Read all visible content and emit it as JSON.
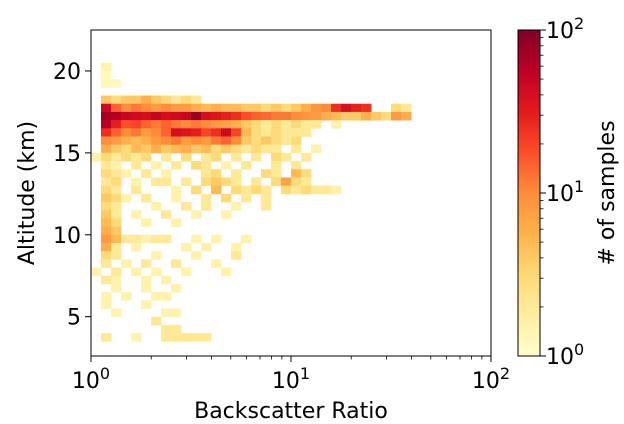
{
  "chart_data": {
    "type": "heatmap",
    "title": "",
    "xlabel": "Backscatter Ratio",
    "ylabel": "Altitude (km)",
    "x_scale": "log",
    "xlim": [
      1,
      100
    ],
    "ylim": [
      2.6,
      22.5
    ],
    "x_ticks": [
      {
        "value": 1,
        "base": "10",
        "exp": "0"
      },
      {
        "value": 10,
        "base": "10",
        "exp": "1"
      },
      {
        "value": 100,
        "base": "10",
        "exp": "2"
      }
    ],
    "y_ticks": [
      5,
      10,
      15,
      20
    ],
    "grid": false,
    "colorbar": {
      "label": "# of samples",
      "scale": "log",
      "range": [
        1,
        100
      ],
      "colormap": "YlOrRd",
      "ticks": [
        {
          "value": 1,
          "base": "10",
          "exp": "0"
        },
        {
          "value": 10,
          "base": "10",
          "exp": "1"
        },
        {
          "value": 100,
          "base": "10",
          "exp": "2"
        }
      ]
    },
    "x_bin_edges_note": "bins uniform in log10(ratio), 0.05 decades wide starting at 1",
    "y_bin_width_km": 0.5,
    "cells_columns": [
      "log10_ratio_bin_start",
      "altitude_bin_start_km",
      "count"
    ],
    "cells": [
      [
        0.05,
        20.0,
        1.5
      ],
      [
        0.05,
        19.5,
        1.2
      ],
      [
        0.05,
        19.0,
        1.3
      ],
      [
        0.1,
        19.0,
        1.2
      ],
      [
        0.05,
        18.0,
        4
      ],
      [
        0.1,
        18.0,
        3
      ],
      [
        0.15,
        18.0,
        4
      ],
      [
        0.2,
        18.0,
        4
      ],
      [
        0.25,
        18.0,
        6
      ],
      [
        0.3,
        18.0,
        4
      ],
      [
        0.35,
        18.0,
        3
      ],
      [
        0.4,
        18.0,
        2
      ],
      [
        0.45,
        18.0,
        3
      ],
      [
        0.5,
        18.0,
        2
      ],
      [
        0.05,
        17.5,
        45
      ],
      [
        0.1,
        17.5,
        15
      ],
      [
        0.15,
        17.5,
        10
      ],
      [
        0.2,
        17.5,
        12
      ],
      [
        0.25,
        17.5,
        10
      ],
      [
        0.3,
        17.5,
        8
      ],
      [
        0.35,
        17.5,
        10
      ],
      [
        0.4,
        17.5,
        8
      ],
      [
        0.45,
        17.5,
        8
      ],
      [
        0.5,
        17.5,
        6
      ],
      [
        0.55,
        17.5,
        5
      ],
      [
        0.6,
        17.5,
        6
      ],
      [
        0.65,
        17.5,
        5
      ],
      [
        0.7,
        17.5,
        5
      ],
      [
        0.75,
        17.5,
        4
      ],
      [
        0.8,
        17.5,
        4
      ],
      [
        0.85,
        17.5,
        3
      ],
      [
        0.9,
        17.5,
        4
      ],
      [
        0.95,
        17.5,
        3
      ],
      [
        1.0,
        17.5,
        4
      ],
      [
        1.05,
        17.5,
        6
      ],
      [
        1.1,
        17.5,
        9
      ],
      [
        1.15,
        17.5,
        10
      ],
      [
        1.2,
        17.5,
        25
      ],
      [
        1.25,
        17.5,
        40
      ],
      [
        1.3,
        17.5,
        30
      ],
      [
        1.35,
        17.5,
        25
      ],
      [
        1.5,
        17.5,
        3
      ],
      [
        1.55,
        17.5,
        2
      ],
      [
        0.05,
        17.0,
        70
      ],
      [
        0.1,
        17.0,
        60
      ],
      [
        0.15,
        17.0,
        50
      ],
      [
        0.2,
        17.0,
        45
      ],
      [
        0.25,
        17.0,
        40
      ],
      [
        0.3,
        17.0,
        50
      ],
      [
        0.35,
        17.0,
        40
      ],
      [
        0.4,
        17.0,
        45
      ],
      [
        0.45,
        17.0,
        50
      ],
      [
        0.5,
        17.0,
        80
      ],
      [
        0.55,
        17.0,
        40
      ],
      [
        0.6,
        17.0,
        35
      ],
      [
        0.65,
        17.0,
        30
      ],
      [
        0.7,
        17.0,
        25
      ],
      [
        0.75,
        17.0,
        18
      ],
      [
        0.8,
        17.0,
        15
      ],
      [
        0.85,
        17.0,
        14
      ],
      [
        0.9,
        17.0,
        12
      ],
      [
        0.95,
        17.0,
        12
      ],
      [
        1.0,
        17.0,
        10
      ],
      [
        1.05,
        17.0,
        9
      ],
      [
        1.1,
        17.0,
        8
      ],
      [
        1.15,
        17.0,
        6
      ],
      [
        1.2,
        17.0,
        5
      ],
      [
        1.25,
        17.0,
        4
      ],
      [
        1.3,
        17.0,
        4
      ],
      [
        1.35,
        17.0,
        6
      ],
      [
        1.4,
        17.0,
        4
      ],
      [
        1.45,
        17.0,
        3
      ],
      [
        1.5,
        17.0,
        8
      ],
      [
        1.55,
        17.0,
        6
      ],
      [
        0.05,
        16.5,
        60
      ],
      [
        0.1,
        16.5,
        30
      ],
      [
        0.15,
        16.5,
        18
      ],
      [
        0.2,
        16.5,
        20
      ],
      [
        0.25,
        16.5,
        15
      ],
      [
        0.3,
        16.5,
        12
      ],
      [
        0.35,
        16.5,
        15
      ],
      [
        0.4,
        16.5,
        12
      ],
      [
        0.45,
        16.5,
        10
      ],
      [
        0.5,
        16.5,
        12
      ],
      [
        0.55,
        16.5,
        10
      ],
      [
        0.6,
        16.5,
        8
      ],
      [
        0.65,
        16.5,
        7
      ],
      [
        0.7,
        16.5,
        6
      ],
      [
        0.75,
        16.5,
        4
      ],
      [
        0.8,
        16.5,
        3
      ],
      [
        0.85,
        16.5,
        2
      ],
      [
        0.9,
        16.5,
        3
      ],
      [
        0.95,
        16.5,
        2
      ],
      [
        1.0,
        16.5,
        3
      ],
      [
        1.05,
        16.5,
        2
      ],
      [
        1.1,
        16.5,
        2
      ],
      [
        1.2,
        16.5,
        1.5
      ],
      [
        0.05,
        16.0,
        25
      ],
      [
        0.1,
        16.0,
        15
      ],
      [
        0.15,
        16.0,
        10
      ],
      [
        0.2,
        16.0,
        12
      ],
      [
        0.25,
        16.0,
        8
      ],
      [
        0.3,
        16.0,
        10
      ],
      [
        0.35,
        16.0,
        15
      ],
      [
        0.4,
        16.0,
        40
      ],
      [
        0.45,
        16.0,
        35
      ],
      [
        0.5,
        16.0,
        30
      ],
      [
        0.55,
        16.0,
        20
      ],
      [
        0.6,
        16.0,
        25
      ],
      [
        0.65,
        16.0,
        45
      ],
      [
        0.7,
        16.0,
        20
      ],
      [
        0.75,
        16.0,
        5
      ],
      [
        0.8,
        16.0,
        3
      ],
      [
        0.85,
        16.0,
        2
      ],
      [
        0.9,
        16.0,
        3
      ],
      [
        0.95,
        16.0,
        2
      ],
      [
        1.0,
        16.0,
        2
      ],
      [
        1.05,
        16.0,
        2
      ],
      [
        0.05,
        15.5,
        10
      ],
      [
        0.1,
        15.5,
        8
      ],
      [
        0.15,
        15.5,
        6
      ],
      [
        0.2,
        15.5,
        5
      ],
      [
        0.25,
        15.5,
        6
      ],
      [
        0.3,
        15.5,
        8
      ],
      [
        0.35,
        15.5,
        10
      ],
      [
        0.4,
        15.5,
        12
      ],
      [
        0.45,
        15.5,
        8
      ],
      [
        0.5,
        15.5,
        10
      ],
      [
        0.55,
        15.5,
        8
      ],
      [
        0.6,
        15.5,
        12
      ],
      [
        0.65,
        15.5,
        15
      ],
      [
        0.7,
        15.5,
        10
      ],
      [
        0.75,
        15.5,
        4
      ],
      [
        0.8,
        15.5,
        3
      ],
      [
        0.85,
        15.5,
        4
      ],
      [
        0.9,
        15.5,
        3
      ],
      [
        0.95,
        15.5,
        2
      ],
      [
        1.0,
        15.5,
        3
      ],
      [
        0.05,
        15.0,
        6
      ],
      [
        0.1,
        15.0,
        4
      ],
      [
        0.15,
        15.0,
        3
      ],
      [
        0.2,
        15.0,
        5
      ],
      [
        0.25,
        15.0,
        4
      ],
      [
        0.3,
        15.0,
        6
      ],
      [
        0.35,
        15.0,
        4
      ],
      [
        0.4,
        15.0,
        5
      ],
      [
        0.45,
        15.0,
        6
      ],
      [
        0.5,
        15.0,
        4
      ],
      [
        0.55,
        15.0,
        5
      ],
      [
        0.6,
        15.0,
        3
      ],
      [
        0.65,
        15.0,
        4
      ],
      [
        0.7,
        15.0,
        3
      ],
      [
        0.75,
        15.0,
        2
      ],
      [
        0.8,
        15.0,
        3
      ],
      [
        0.85,
        15.0,
        2
      ],
      [
        0.9,
        15.0,
        2
      ],
      [
        1.0,
        15.0,
        2
      ],
      [
        1.1,
        15.0,
        1.5
      ],
      [
        0.0,
        14.5,
        1.5
      ],
      [
        0.05,
        14.5,
        3
      ],
      [
        0.1,
        14.5,
        2
      ],
      [
        0.15,
        14.5,
        3
      ],
      [
        0.2,
        14.5,
        2
      ],
      [
        0.25,
        14.5,
        3
      ],
      [
        0.35,
        14.5,
        2
      ],
      [
        0.45,
        14.5,
        3
      ],
      [
        0.55,
        14.5,
        2
      ],
      [
        0.6,
        14.5,
        3
      ],
      [
        0.7,
        14.5,
        2
      ],
      [
        0.8,
        14.5,
        2
      ],
      [
        0.9,
        14.5,
        3
      ],
      [
        0.95,
        14.5,
        2
      ],
      [
        1.05,
        14.5,
        2
      ],
      [
        0.05,
        14.0,
        2
      ],
      [
        0.1,
        14.0,
        1.5
      ],
      [
        0.2,
        14.0,
        2
      ],
      [
        0.3,
        14.0,
        1.5
      ],
      [
        0.4,
        14.0,
        2
      ],
      [
        0.5,
        14.0,
        3
      ],
      [
        0.55,
        14.0,
        2
      ],
      [
        0.65,
        14.0,
        1.5
      ],
      [
        0.75,
        14.0,
        2
      ],
      [
        0.9,
        14.0,
        2
      ],
      [
        1.0,
        14.0,
        2
      ],
      [
        0.05,
        13.5,
        3
      ],
      [
        0.1,
        13.5,
        2
      ],
      [
        0.15,
        13.5,
        1.5
      ],
      [
        0.25,
        13.5,
        2
      ],
      [
        0.35,
        13.5,
        1.5
      ],
      [
        0.55,
        13.5,
        2
      ],
      [
        0.6,
        13.5,
        3
      ],
      [
        0.7,
        13.5,
        2
      ],
      [
        0.85,
        13.5,
        3
      ],
      [
        0.9,
        13.5,
        2
      ],
      [
        1.0,
        13.5,
        5
      ],
      [
        1.05,
        13.5,
        3
      ],
      [
        0.05,
        13.0,
        2
      ],
      [
        0.1,
        13.0,
        3
      ],
      [
        0.2,
        13.0,
        1.5
      ],
      [
        0.3,
        13.0,
        2
      ],
      [
        0.35,
        13.0,
        2
      ],
      [
        0.45,
        13.0,
        2
      ],
      [
        0.55,
        13.0,
        3
      ],
      [
        0.6,
        13.0,
        4
      ],
      [
        0.65,
        13.0,
        3
      ],
      [
        0.7,
        13.0,
        2
      ],
      [
        0.8,
        13.0,
        2
      ],
      [
        0.9,
        13.0,
        3
      ],
      [
        0.95,
        13.0,
        7
      ],
      [
        1.0,
        13.0,
        3
      ],
      [
        1.05,
        13.0,
        2
      ],
      [
        0.05,
        12.5,
        3
      ],
      [
        0.1,
        12.5,
        2
      ],
      [
        0.2,
        12.5,
        2
      ],
      [
        0.4,
        12.5,
        1.5
      ],
      [
        0.5,
        12.5,
        3
      ],
      [
        0.6,
        12.5,
        5
      ],
      [
        0.7,
        12.5,
        3
      ],
      [
        0.75,
        12.5,
        2
      ],
      [
        0.8,
        12.5,
        3
      ],
      [
        0.85,
        12.5,
        2
      ],
      [
        0.95,
        12.5,
        3
      ],
      [
        1.0,
        12.5,
        2
      ],
      [
        1.05,
        12.5,
        3
      ],
      [
        1.1,
        12.5,
        2
      ],
      [
        1.15,
        12.5,
        2
      ],
      [
        1.2,
        12.5,
        1.5
      ],
      [
        0.05,
        12.0,
        4
      ],
      [
        0.1,
        12.0,
        3
      ],
      [
        0.15,
        12.0,
        1.5
      ],
      [
        0.25,
        12.0,
        2
      ],
      [
        0.4,
        12.0,
        1.5
      ],
      [
        0.55,
        12.0,
        2
      ],
      [
        0.65,
        12.0,
        3
      ],
      [
        0.75,
        12.0,
        2
      ],
      [
        0.85,
        12.0,
        2
      ],
      [
        0.05,
        11.5,
        3
      ],
      [
        0.1,
        11.5,
        2
      ],
      [
        0.3,
        11.5,
        1.5
      ],
      [
        0.45,
        11.5,
        2
      ],
      [
        0.55,
        11.5,
        2
      ],
      [
        0.7,
        11.5,
        1.5
      ],
      [
        0.85,
        11.5,
        2
      ],
      [
        0.05,
        11.0,
        4
      ],
      [
        0.1,
        11.0,
        2
      ],
      [
        0.2,
        11.0,
        1.5
      ],
      [
        0.35,
        11.0,
        2
      ],
      [
        0.5,
        11.0,
        1.5
      ],
      [
        0.65,
        11.0,
        1.5
      ],
      [
        0.05,
        10.5,
        5
      ],
      [
        0.1,
        10.5,
        3
      ],
      [
        0.25,
        10.5,
        1.5
      ],
      [
        0.4,
        10.5,
        1.5
      ],
      [
        0.05,
        10.0,
        6
      ],
      [
        0.1,
        10.0,
        4
      ],
      [
        0.05,
        9.5,
        8
      ],
      [
        0.1,
        9.5,
        5
      ],
      [
        0.15,
        9.5,
        2
      ],
      [
        0.2,
        9.5,
        2
      ],
      [
        0.25,
        9.5,
        1.5
      ],
      [
        0.3,
        9.5,
        2
      ],
      [
        0.35,
        9.5,
        2
      ],
      [
        0.5,
        9.5,
        1.5
      ],
      [
        0.6,
        9.5,
        1.5
      ],
      [
        0.75,
        9.5,
        1.5
      ],
      [
        0.05,
        9.0,
        6
      ],
      [
        0.1,
        9.0,
        2
      ],
      [
        0.2,
        9.0,
        1.5
      ],
      [
        0.45,
        9.0,
        1.5
      ],
      [
        0.55,
        9.0,
        1.5
      ],
      [
        0.7,
        9.0,
        1.5
      ],
      [
        0.05,
        8.5,
        3
      ],
      [
        0.1,
        8.5,
        2
      ],
      [
        0.3,
        8.5,
        1.5
      ],
      [
        0.5,
        8.5,
        1.5
      ],
      [
        0.7,
        8.5,
        2
      ],
      [
        0.05,
        8.0,
        2
      ],
      [
        0.15,
        8.0,
        1.5
      ],
      [
        0.25,
        8.0,
        2
      ],
      [
        0.4,
        8.0,
        2
      ],
      [
        0.6,
        8.0,
        1.5
      ],
      [
        0.0,
        7.5,
        1.5
      ],
      [
        0.1,
        7.5,
        2
      ],
      [
        0.2,
        7.5,
        1.5
      ],
      [
        0.3,
        7.5,
        1.5
      ],
      [
        0.45,
        7.5,
        1.5
      ],
      [
        0.65,
        7.5,
        1.5
      ],
      [
        0.05,
        7.0,
        2
      ],
      [
        0.1,
        7.0,
        1.5
      ],
      [
        0.25,
        7.0,
        1.5
      ],
      [
        0.35,
        7.0,
        1.5
      ],
      [
        0.1,
        6.5,
        1.5
      ],
      [
        0.25,
        6.5,
        1.5
      ],
      [
        0.4,
        6.5,
        1.5
      ],
      [
        0.05,
        6.0,
        1.5
      ],
      [
        0.15,
        6.0,
        1.5
      ],
      [
        0.3,
        6.0,
        1.5
      ],
      [
        0.35,
        6.0,
        1.5
      ],
      [
        0.05,
        5.5,
        1.5
      ],
      [
        0.25,
        5.5,
        1.5
      ],
      [
        0.1,
        5.0,
        1.5
      ],
      [
        0.35,
        5.0,
        1.5
      ],
      [
        0.4,
        5.0,
        1.5
      ],
      [
        0.3,
        4.5,
        2
      ],
      [
        0.35,
        4.0,
        2
      ],
      [
        0.4,
        4.0,
        2
      ],
      [
        0.05,
        3.5,
        2
      ],
      [
        0.2,
        3.5,
        1.5
      ],
      [
        0.35,
        3.5,
        2
      ],
      [
        0.4,
        3.5,
        2
      ],
      [
        0.45,
        3.5,
        2
      ],
      [
        0.5,
        3.5,
        2
      ],
      [
        0.55,
        3.5,
        2
      ]
    ]
  }
}
